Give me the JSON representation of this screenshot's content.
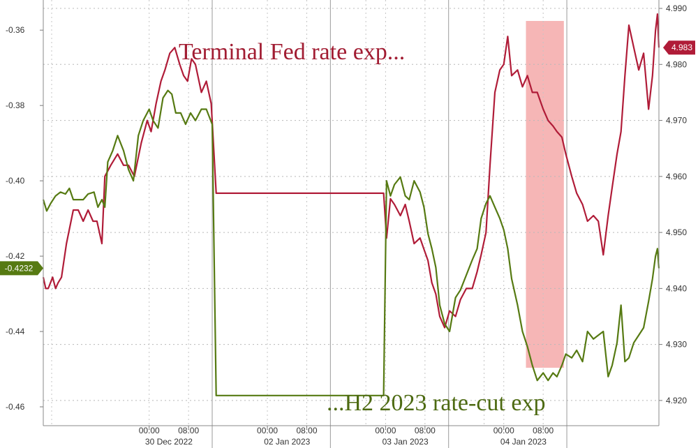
{
  "chart_data": {
    "type": "line",
    "title": "",
    "xlabel": "",
    "ylabel": "",
    "left_axis": {
      "ylim": [
        -0.465,
        -0.352
      ],
      "ticks": [
        "-0.36",
        "-0.38",
        "-0.40",
        "-0.42",
        "-0.44",
        "-0.46"
      ],
      "tick_values": [
        -0.36,
        -0.38,
        -0.4,
        -0.42,
        -0.44,
        -0.46
      ],
      "last_value_label": "-0.4232",
      "last_value": -0.4232
    },
    "right_axis": {
      "ylim": [
        4.9155,
        4.9915
      ],
      "ticks": [
        "4.990",
        "4.980",
        "4.970",
        "4.960",
        "4.950",
        "4.940",
        "4.930",
        "4.920"
      ],
      "tick_values": [
        4.99,
        4.98,
        4.97,
        4.96,
        4.95,
        4.94,
        4.93,
        4.92
      ],
      "last_value_label": "4.983",
      "last_value": 4.983
    },
    "x_axis": {
      "range_hours": [
        -21.5,
        103.5
      ],
      "time_ticks": [
        {
          "label": "00:00",
          "hours": 0
        },
        {
          "label": "08:00",
          "hours": 8
        },
        {
          "label": "00:00",
          "hours": 24
        },
        {
          "label": "08:00",
          "hours": 32
        },
        {
          "label": "00:00",
          "hours": 48
        },
        {
          "label": "08:00",
          "hours": 56
        },
        {
          "label": "00:00",
          "hours": 72
        },
        {
          "label": "08:00",
          "hours": 80
        }
      ],
      "day_labels": [
        {
          "label": "30 Dec 2022",
          "hours": 4
        },
        {
          "label": "02 Jan 2023",
          "hours": 28
        },
        {
          "label": "03 Jan 2023",
          "hours": 52
        },
        {
          "label": "04 Jan 2023",
          "hours": 76
        }
      ],
      "day_separators_hours": [
        12.8,
        36.8,
        60.8,
        84.8
      ],
      "extra_gridlines_hours": [
        -19.8,
        44,
        68
      ]
    },
    "highlight": {
      "from_hours": 76.5,
      "to_hours": 84.2,
      "color": "#f4a9a9"
    },
    "annotations": [
      {
        "text": "Terminal Fed rate exp...",
        "color": "#a11c32"
      },
      {
        "text": "...H2 2023 rate-cut exp",
        "color": "#4d6a12"
      }
    ],
    "series": [
      {
        "name": "",
        "axis": "right",
        "color": "#b01c38",
        "points": [
          [
            -21.5,
            4.942
          ],
          [
            -21,
            4.94
          ],
          [
            -20.5,
            4.94
          ],
          [
            -19.6,
            4.942
          ],
          [
            -19,
            4.94
          ],
          [
            -18.5,
            4.941
          ],
          [
            -17.8,
            4.942
          ],
          [
            -16.8,
            4.948
          ],
          [
            -15.4,
            4.954
          ],
          [
            -14.4,
            4.954
          ],
          [
            -13.4,
            4.952
          ],
          [
            -12.4,
            4.954
          ],
          [
            -11.4,
            4.952
          ],
          [
            -10.6,
            4.952
          ],
          [
            -9.6,
            4.948
          ],
          [
            -9,
            4.96
          ],
          [
            -7.8,
            4.962
          ],
          [
            -6.4,
            4.964
          ],
          [
            -5.2,
            4.962
          ],
          [
            -4.2,
            4.962
          ],
          [
            -3,
            4.96
          ],
          [
            -1.6,
            4.966
          ],
          [
            -0.4,
            4.97
          ],
          [
            0.4,
            4.968
          ],
          [
            1.4,
            4.973
          ],
          [
            2.4,
            4.977
          ],
          [
            3.2,
            4.979
          ],
          [
            4.2,
            4.982
          ],
          [
            5.2,
            4.983
          ],
          [
            6.2,
            4.98
          ],
          [
            7,
            4.978
          ],
          [
            7.8,
            4.977
          ],
          [
            8.6,
            4.981
          ],
          [
            9.4,
            4.98
          ],
          [
            10.6,
            4.975
          ],
          [
            11.6,
            4.977
          ],
          [
            12.6,
            4.973
          ],
          [
            13.6,
            4.957
          ],
          [
            47.6,
            4.957
          ],
          [
            48.2,
            4.949
          ],
          [
            49,
            4.956
          ],
          [
            49.8,
            4.955
          ],
          [
            51,
            4.953
          ],
          [
            52,
            4.955
          ],
          [
            52.8,
            4.952
          ],
          [
            53.8,
            4.948
          ],
          [
            55,
            4.949
          ],
          [
            55.8,
            4.947
          ],
          [
            56.6,
            4.945
          ],
          [
            57.4,
            4.941
          ],
          [
            58.2,
            4.939
          ],
          [
            59,
            4.935
          ],
          [
            60,
            4.933
          ],
          [
            61,
            4.936
          ],
          [
            62.2,
            4.935
          ],
          [
            63.2,
            4.938
          ],
          [
            64.4,
            4.94
          ],
          [
            65.6,
            4.94
          ],
          [
            66.6,
            4.943
          ],
          [
            67.4,
            4.946
          ],
          [
            68.4,
            4.95
          ],
          [
            69.2,
            4.962
          ],
          [
            70.2,
            4.975
          ],
          [
            71.2,
            4.979
          ],
          [
            72,
            4.98
          ],
          [
            72.8,
            4.985
          ],
          [
            73.6,
            4.978
          ],
          [
            74.8,
            4.979
          ],
          [
            75.8,
            4.976
          ],
          [
            76.8,
            4.978
          ],
          [
            77.8,
            4.975
          ],
          [
            78.8,
            4.975
          ],
          [
            80,
            4.972
          ],
          [
            81,
            4.97
          ],
          [
            82,
            4.969
          ],
          [
            82.8,
            4.968
          ],
          [
            83.8,
            4.967
          ],
          [
            84.6,
            4.964
          ],
          [
            85.8,
            4.96
          ],
          [
            86.8,
            4.957
          ],
          [
            88,
            4.955
          ],
          [
            89,
            4.952
          ],
          [
            90.2,
            4.953
          ],
          [
            91.2,
            4.952
          ],
          [
            92.2,
            4.946
          ],
          [
            93.2,
            4.953
          ],
          [
            94,
            4.958
          ],
          [
            95,
            4.964
          ],
          [
            95.8,
            4.968
          ],
          [
            96.6,
            4.978
          ],
          [
            97.4,
            4.987
          ],
          [
            98.4,
            4.983
          ],
          [
            99.4,
            4.979
          ],
          [
            100.4,
            4.982
          ],
          [
            101.4,
            4.972
          ],
          [
            102.2,
            4.978
          ],
          [
            102.8,
            4.986
          ],
          [
            103.2,
            4.989
          ],
          [
            103.5,
            4.983
          ]
        ]
      },
      {
        "name": "",
        "axis": "left",
        "color": "#567a12",
        "points": [
          [
            -21.5,
            -0.405
          ],
          [
            -20.8,
            -0.408
          ],
          [
            -20,
            -0.406
          ],
          [
            -19,
            -0.404
          ],
          [
            -18,
            -0.403
          ],
          [
            -17,
            -0.4035
          ],
          [
            -16.2,
            -0.402
          ],
          [
            -15.4,
            -0.405
          ],
          [
            -14.4,
            -0.405
          ],
          [
            -13.4,
            -0.405
          ],
          [
            -12.4,
            -0.4035
          ],
          [
            -11.2,
            -0.403
          ],
          [
            -10.4,
            -0.407
          ],
          [
            -9.6,
            -0.405
          ],
          [
            -9,
            -0.407
          ],
          [
            -8.4,
            -0.395
          ],
          [
            -7.4,
            -0.392
          ],
          [
            -6.4,
            -0.388
          ],
          [
            -5.2,
            -0.392
          ],
          [
            -4.2,
            -0.397
          ],
          [
            -3.2,
            -0.4
          ],
          [
            -2.2,
            -0.388
          ],
          [
            -1.2,
            -0.384
          ],
          [
            0,
            -0.381
          ],
          [
            0.8,
            -0.384
          ],
          [
            1.8,
            -0.386
          ],
          [
            2.8,
            -0.378
          ],
          [
            3.8,
            -0.376
          ],
          [
            4.6,
            -0.377
          ],
          [
            5.4,
            -0.382
          ],
          [
            6.4,
            -0.382
          ],
          [
            7.4,
            -0.385
          ],
          [
            8.4,
            -0.382
          ],
          [
            9.4,
            -0.384
          ],
          [
            10.6,
            -0.381
          ],
          [
            11.6,
            -0.381
          ],
          [
            12.8,
            -0.385
          ],
          [
            13.6,
            -0.457
          ],
          [
            47.6,
            -0.457
          ],
          [
            48.2,
            -0.4
          ],
          [
            49,
            -0.404
          ],
          [
            49.8,
            -0.401
          ],
          [
            51,
            -0.399
          ],
          [
            52,
            -0.404
          ],
          [
            52.8,
            -0.405
          ],
          [
            53.8,
            -0.4
          ],
          [
            55,
            -0.403
          ],
          [
            55.8,
            -0.407
          ],
          [
            56.6,
            -0.414
          ],
          [
            57.4,
            -0.418
          ],
          [
            58.2,
            -0.423
          ],
          [
            59,
            -0.433
          ],
          [
            60,
            -0.438
          ],
          [
            61,
            -0.44
          ],
          [
            62.2,
            -0.431
          ],
          [
            63.2,
            -0.429
          ],
          [
            64.4,
            -0.425
          ],
          [
            65.6,
            -0.421
          ],
          [
            66.6,
            -0.418
          ],
          [
            67.4,
            -0.41
          ],
          [
            68.4,
            -0.406
          ],
          [
            69.2,
            -0.404
          ],
          [
            70.2,
            -0.407
          ],
          [
            71.2,
            -0.41
          ],
          [
            72,
            -0.413
          ],
          [
            72.8,
            -0.418
          ],
          [
            73.6,
            -0.426
          ],
          [
            74.8,
            -0.433
          ],
          [
            75.8,
            -0.44
          ],
          [
            76.8,
            -0.444
          ],
          [
            77.8,
            -0.449
          ],
          [
            78.8,
            -0.453
          ],
          [
            80,
            -0.451
          ],
          [
            81,
            -0.453
          ],
          [
            82,
            -0.451
          ],
          [
            82.8,
            -0.452
          ],
          [
            83.8,
            -0.449
          ],
          [
            84.6,
            -0.446
          ],
          [
            85.8,
            -0.447
          ],
          [
            86.8,
            -0.445
          ],
          [
            88,
            -0.448
          ],
          [
            89,
            -0.44
          ],
          [
            90.2,
            -0.442
          ],
          [
            91.2,
            -0.441
          ],
          [
            92.2,
            -0.44
          ],
          [
            93.2,
            -0.452
          ],
          [
            94,
            -0.449
          ],
          [
            95,
            -0.443
          ],
          [
            95.8,
            -0.433
          ],
          [
            96.6,
            -0.448
          ],
          [
            97.4,
            -0.447
          ],
          [
            98.4,
            -0.443
          ],
          [
            99.4,
            -0.441
          ],
          [
            100.4,
            -0.439
          ],
          [
            101.4,
            -0.432
          ],
          [
            102.2,
            -0.426
          ],
          [
            102.8,
            -0.42
          ],
          [
            103.2,
            -0.418
          ],
          [
            103.5,
            -0.4232
          ]
        ]
      }
    ]
  }
}
